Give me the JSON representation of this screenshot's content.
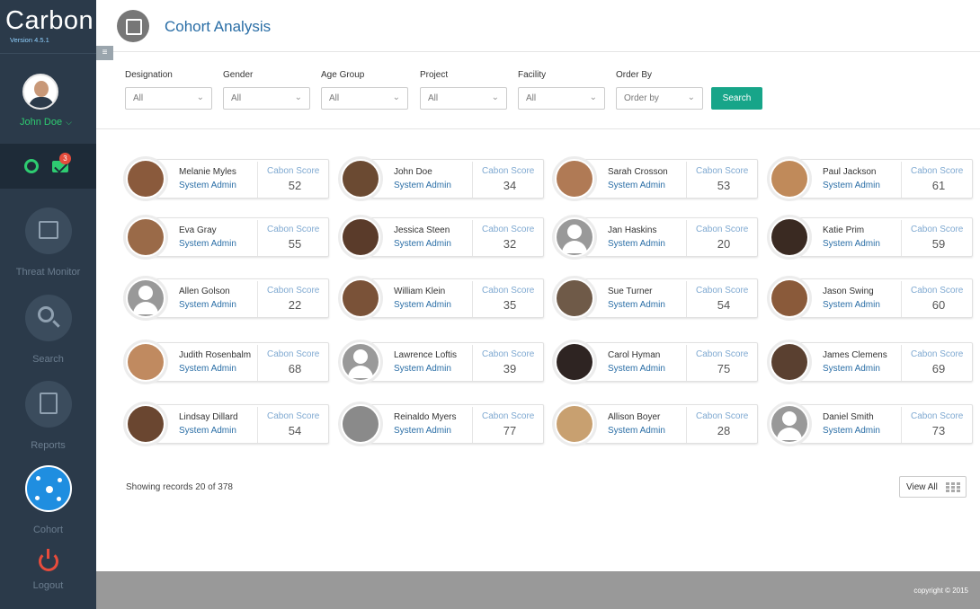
{
  "app": {
    "name": "Carbon",
    "version": "Version 4.5.1"
  },
  "user": {
    "name": "John Doe",
    "notifications": "3"
  },
  "nav": [
    {
      "label": "Threat Monitor"
    },
    {
      "label": "Search"
    },
    {
      "label": "Reports"
    },
    {
      "label": "Cohort"
    },
    {
      "label": "Logout"
    }
  ],
  "page": {
    "title": "Cohort Analysis"
  },
  "filters": [
    {
      "label": "Designation",
      "value": "All"
    },
    {
      "label": "Gender",
      "value": "All"
    },
    {
      "label": "Age Group",
      "value": "All"
    },
    {
      "label": "Project",
      "value": "All"
    },
    {
      "label": "Facility",
      "value": "All"
    },
    {
      "label": "Order By",
      "value": "Order by"
    }
  ],
  "search_label": "Search",
  "score_label": "Cabon Score",
  "people": [
    {
      "name": "Melanie Myles",
      "role": "System Admin",
      "score": "52",
      "avatar_color": "#8a5a3c"
    },
    {
      "name": "John Doe",
      "role": "System Admin",
      "score": "34",
      "avatar_color": "#6b4a32"
    },
    {
      "name": "Sarah Crosson",
      "role": "System Admin",
      "score": "53",
      "avatar_color": "#b07a55"
    },
    {
      "name": "Paul Jackson",
      "role": "System Admin",
      "score": "61",
      "avatar_color": "#c08a5a"
    },
    {
      "name": "Eva Gray",
      "role": "System Admin",
      "score": "55",
      "avatar_color": "#9a6a48"
    },
    {
      "name": "Jessica Steen",
      "role": "System Admin",
      "score": "32",
      "avatar_color": "#5a3b2a"
    },
    {
      "name": "Jan Haskins",
      "role": "System Admin",
      "score": "20",
      "avatar_color": "placeholder"
    },
    {
      "name": "Katie Prim",
      "role": "System Admin",
      "score": "59",
      "avatar_color": "#3a2a22"
    },
    {
      "name": "Allen Golson",
      "role": "System Admin",
      "score": "22",
      "avatar_color": "placeholder"
    },
    {
      "name": "William Klein",
      "role": "System Admin",
      "score": "35",
      "avatar_color": "#7a5238"
    },
    {
      "name": "Sue Turner",
      "role": "System Admin",
      "score": "54",
      "avatar_color": "#6f5a48"
    },
    {
      "name": "Jason Swing",
      "role": "System Admin",
      "score": "60",
      "avatar_color": "#8a5a3a"
    },
    {
      "name": "Judith Rosenbalm",
      "role": "System Admin",
      "score": "68",
      "avatar_color": "#c08a60"
    },
    {
      "name": "Lawrence Loftis",
      "role": "System Admin",
      "score": "39",
      "avatar_color": "placeholder"
    },
    {
      "name": "Carol Hyman",
      "role": "System Admin",
      "score": "75",
      "avatar_color": "#2e2422"
    },
    {
      "name": "James Clemens",
      "role": "System Admin",
      "score": "69",
      "avatar_color": "#5a4030"
    },
    {
      "name": "Lindsay Dillard",
      "role": "System Admin",
      "score": "54",
      "avatar_color": "#6a4630"
    },
    {
      "name": "Reinaldo Myers",
      "role": "System Admin",
      "score": "77",
      "avatar_color": "#8a8a8a"
    },
    {
      "name": "Allison Boyer",
      "role": "System Admin",
      "score": "28",
      "avatar_color": "#c8a070"
    },
    {
      "name": "Daniel Smith",
      "role": "System Admin",
      "score": "73",
      "avatar_color": "placeholder"
    }
  ],
  "records_text": "Showing records 20 of 378",
  "view_all_label": "View All",
  "copyright": "copyright  © 2015"
}
